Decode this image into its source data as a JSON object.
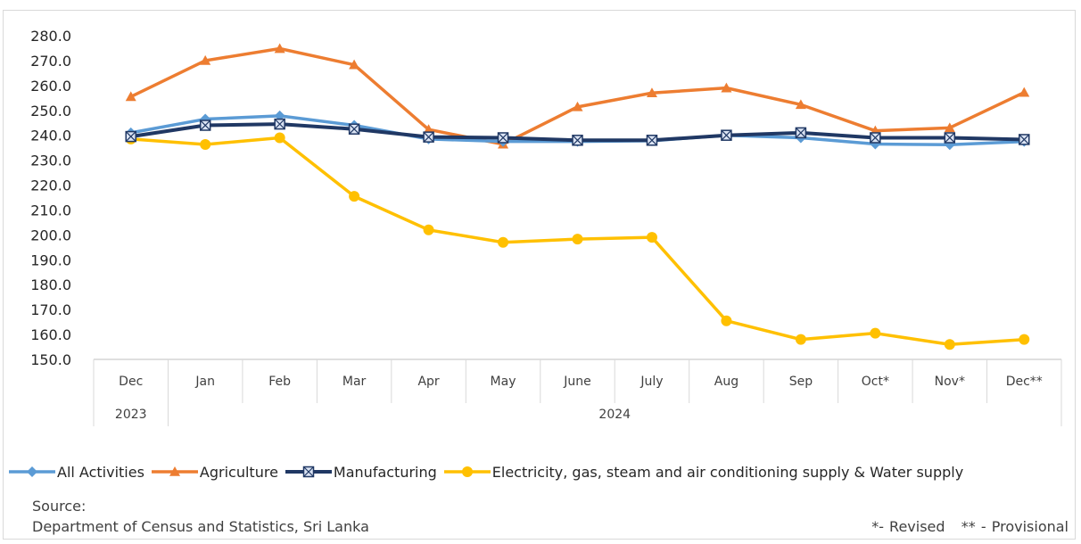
{
  "chart_data": {
    "type": "line",
    "title": "",
    "xlabel": "",
    "ylabel": "",
    "ylim": [
      150,
      280
    ],
    "ytick_step": 10,
    "ytick_labels": [
      "150.0",
      "160.0",
      "170.0",
      "180.0",
      "190.0",
      "200.0",
      "210.0",
      "220.0",
      "230.0",
      "240.0",
      "250.0",
      "260.0",
      "270.0",
      "280.0"
    ],
    "categories": [
      "Dec",
      "Jan",
      "Feb",
      "Mar",
      "Apr",
      "May",
      "June",
      "July",
      "Aug",
      "Sep",
      "Oct*",
      "Nov*",
      "Dec**"
    ],
    "year_groups": [
      {
        "label": "2023",
        "span": 1
      },
      {
        "label": "2024",
        "span": 12
      }
    ],
    "grid": false,
    "legend_position": "bottom",
    "series": [
      {
        "name": "All Activities",
        "color": "#5b9bd5",
        "marker": "diamond",
        "values": [
          241.0,
          246.5,
          247.8,
          244.0,
          238.5,
          237.5,
          237.5,
          237.8,
          240.0,
          239.0,
          236.5,
          236.2,
          237.5
        ]
      },
      {
        "name": "Agriculture",
        "color": "#ed7d31",
        "marker": "triangle",
        "values": [
          255.5,
          270.0,
          274.8,
          268.3,
          242.3,
          236.4,
          251.4,
          257.0,
          259.0,
          252.3,
          241.8,
          243.0,
          257.2
        ]
      },
      {
        "name": "Manufacturing",
        "color": "#203864",
        "marker": "boxed-x",
        "values": [
          239.5,
          244.0,
          244.5,
          242.5,
          239.3,
          239.0,
          238.0,
          238.0,
          240.0,
          241.0,
          239.0,
          239.0,
          238.3
        ]
      },
      {
        "name": "Electricity, gas, steam and air conditioning supply & Water supply",
        "color": "#ffc000",
        "marker": "circle",
        "values": [
          238.5,
          236.3,
          239.0,
          215.5,
          202.0,
          197.0,
          198.3,
          199.0,
          165.5,
          158.0,
          160.5,
          156.0,
          158.0
        ]
      }
    ]
  },
  "footer": {
    "source_label": "Source:",
    "source_text": "Department of Census and Statistics, Sri Lanka",
    "notes": "*- Revised   ** - Provisional"
  }
}
